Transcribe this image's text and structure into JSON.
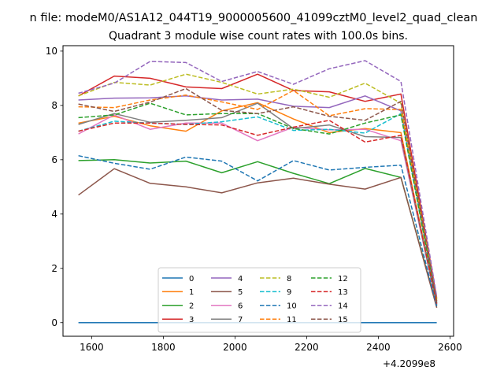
{
  "figure_title": "n file: modeM0/AS1A12_044T19_9000005600_41099cztM0_level2_quad_clean",
  "chart_data": {
    "type": "line",
    "title": "Quadrant 3 module wise count rates with 100.0s bins.",
    "xlabel": "",
    "ylabel": "",
    "x_offset_label": "+4.2099e8",
    "x_offset": 420990000,
    "x": [
      1563,
      1663,
      1763,
      1863,
      1963,
      2063,
      2163,
      2263,
      2363,
      2463,
      2563
    ],
    "xlim": [
      1520,
      2610
    ],
    "ylim": [
      -0.5,
      10.2
    ],
    "xticks": [
      1600,
      1800,
      2000,
      2200,
      2400,
      2600
    ],
    "xtick_labels": [
      "1600",
      "1800",
      "2000",
      "2200",
      "2400",
      "2600"
    ],
    "yticks": [
      0,
      2,
      4,
      6,
      8,
      10
    ],
    "ytick_labels": [
      "0",
      "2",
      "4",
      "6",
      "8",
      "10"
    ],
    "grid": false,
    "legend_position": "lower-center",
    "legend_columns": 4,
    "series": [
      {
        "name": "0",
        "color": "#1f77b4",
        "dash": "solid",
        "values": [
          0,
          0,
          0,
          0,
          0,
          0,
          0,
          0,
          0,
          0,
          0
        ]
      },
      {
        "name": "1",
        "color": "#ff7f0e",
        "dash": "solid",
        "values": [
          7.35,
          7.6,
          7.25,
          7.05,
          7.8,
          8.1,
          7.5,
          7.0,
          7.15,
          7.0,
          0.7
        ]
      },
      {
        "name": "2",
        "color": "#2ca02c",
        "dash": "solid",
        "values": [
          5.97,
          6.0,
          5.88,
          5.95,
          5.52,
          5.93,
          5.5,
          5.12,
          5.68,
          5.35,
          0.6
        ]
      },
      {
        "name": "3",
        "color": "#d62728",
        "dash": "solid",
        "values": [
          8.35,
          9.08,
          9.0,
          8.68,
          8.62,
          9.15,
          8.55,
          8.5,
          8.15,
          8.42,
          0.9
        ]
      },
      {
        "name": "4",
        "color": "#9467bd",
        "dash": "solid",
        "values": [
          8.2,
          8.27,
          8.28,
          8.35,
          8.2,
          8.23,
          7.97,
          7.92,
          8.35,
          7.8,
          0.8
        ]
      },
      {
        "name": "5",
        "color": "#8c564b",
        "dash": "solid",
        "values": [
          4.7,
          5.67,
          5.13,
          5.0,
          4.78,
          5.15,
          5.32,
          5.1,
          4.92,
          5.35,
          0.55
        ]
      },
      {
        "name": "6",
        "color": "#e377c2",
        "dash": "solid",
        "values": [
          6.95,
          7.65,
          7.12,
          7.35,
          7.35,
          6.7,
          7.2,
          7.1,
          7.12,
          6.7,
          0.65
        ]
      },
      {
        "name": "7",
        "color": "#7f7f7f",
        "dash": "solid",
        "values": [
          7.3,
          7.7,
          7.38,
          7.45,
          7.55,
          8.08,
          7.15,
          7.28,
          6.85,
          6.82,
          0.65
        ]
      },
      {
        "name": "8",
        "color": "#bcbd22",
        "dash": "dashed",
        "values": [
          8.35,
          8.85,
          8.75,
          9.15,
          8.85,
          8.42,
          8.6,
          8.3,
          8.82,
          8.08,
          0.85
        ]
      },
      {
        "name": "9",
        "color": "#17becf",
        "dash": "dashed",
        "values": [
          7.05,
          7.42,
          7.35,
          7.3,
          7.4,
          7.58,
          7.08,
          7.12,
          6.98,
          7.7,
          0.7
        ]
      },
      {
        "name": "10",
        "color": "#1f77b4",
        "dash": "dashed",
        "values": [
          6.15,
          5.87,
          5.65,
          6.1,
          5.95,
          5.22,
          5.97,
          5.62,
          5.72,
          5.8,
          0.6
        ]
      },
      {
        "name": "11",
        "color": "#ff7f0e",
        "dash": "dashed",
        "values": [
          7.95,
          7.92,
          8.2,
          8.38,
          8.13,
          7.85,
          8.55,
          7.62,
          7.88,
          7.85,
          0.8
        ]
      },
      {
        "name": "12",
        "color": "#2ca02c",
        "dash": "dashed",
        "values": [
          7.55,
          7.65,
          8.08,
          7.65,
          7.7,
          7.7,
          7.15,
          6.95,
          7.35,
          7.65,
          0.75
        ]
      },
      {
        "name": "13",
        "color": "#d62728",
        "dash": "dashed",
        "values": [
          7.05,
          7.35,
          7.35,
          7.3,
          7.28,
          6.9,
          7.2,
          7.45,
          6.65,
          6.9,
          0.7
        ]
      },
      {
        "name": "14",
        "color": "#9467bd",
        "dash": "dashed",
        "values": [
          8.45,
          8.82,
          9.62,
          9.58,
          8.88,
          9.25,
          8.78,
          9.35,
          9.65,
          8.88,
          0.95
        ]
      },
      {
        "name": "15",
        "color": "#8c564b",
        "dash": "dashed",
        "values": [
          8.05,
          7.78,
          8.12,
          8.62,
          7.82,
          7.7,
          7.95,
          7.6,
          7.45,
          8.15,
          0.75
        ]
      }
    ]
  }
}
